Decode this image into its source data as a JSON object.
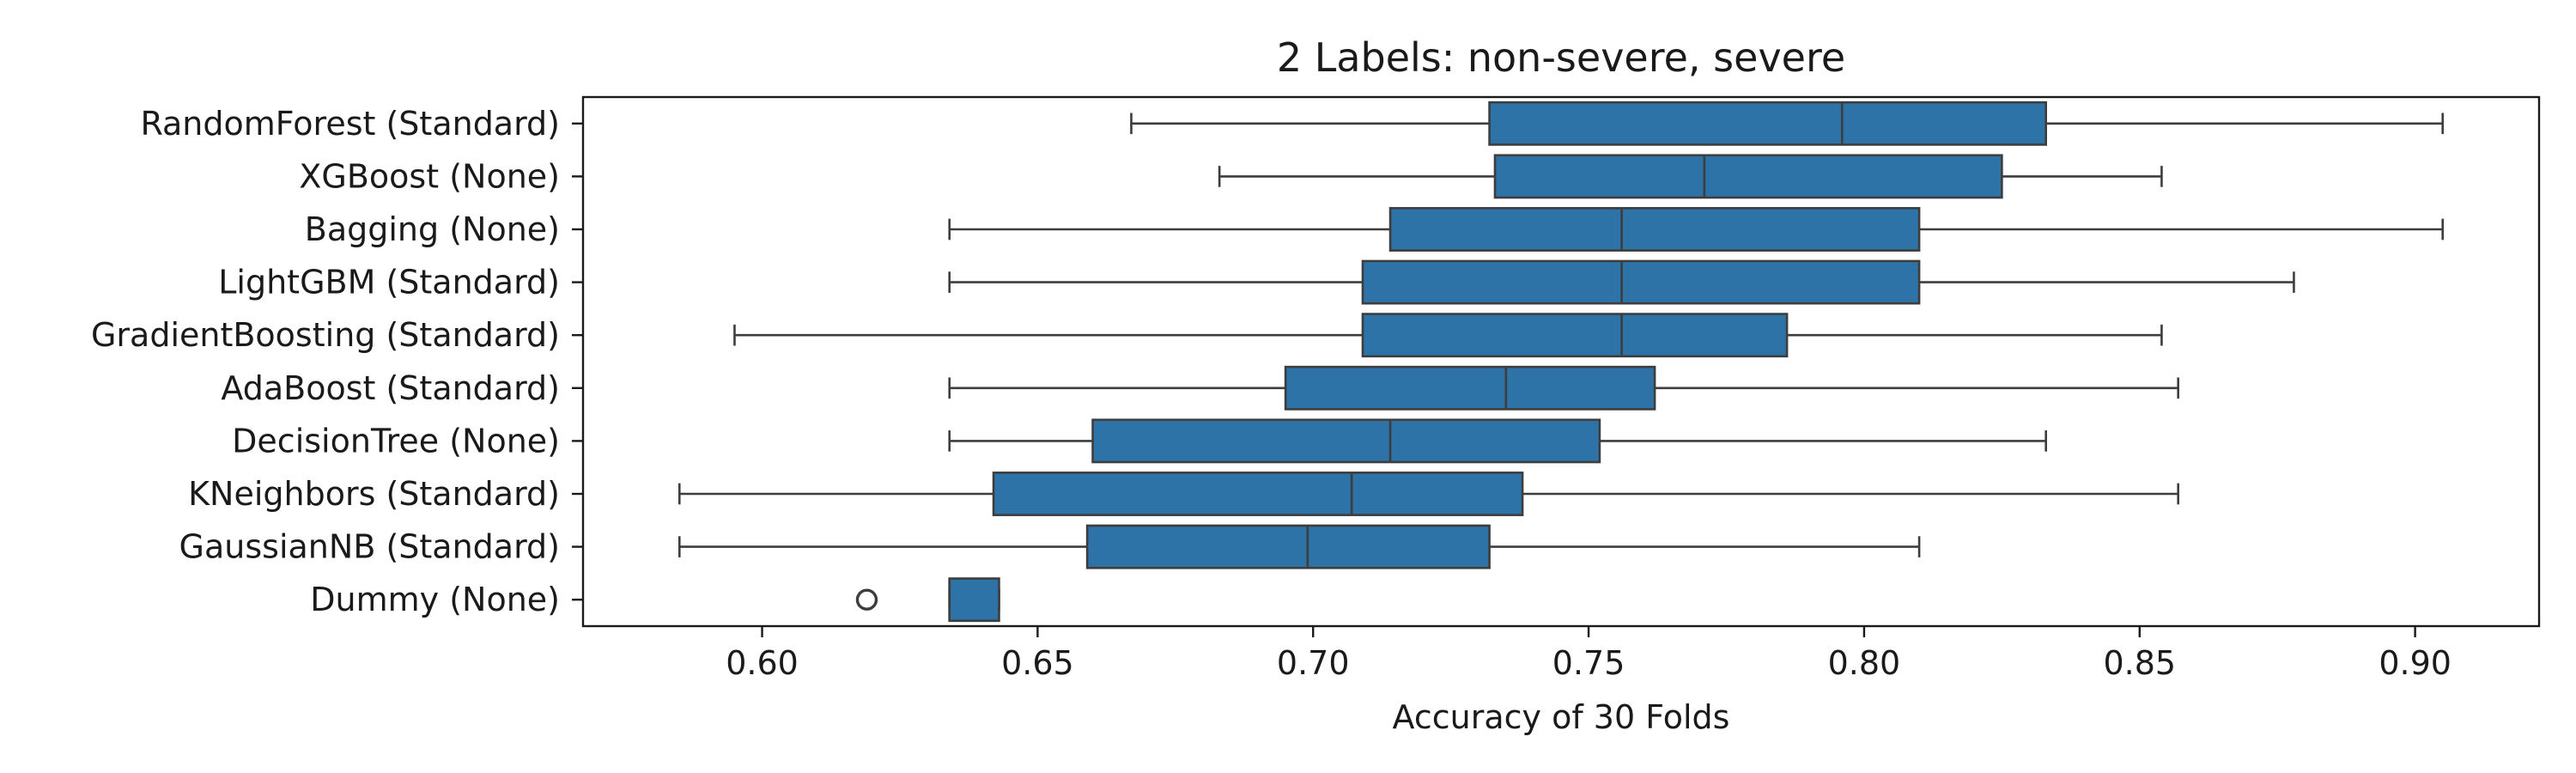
{
  "chart_data": {
    "type": "boxplot",
    "orientation": "horizontal",
    "title": "2 Labels: non-severe, severe",
    "xlabel": "Accuracy of 30 Folds",
    "ylabel": "",
    "xlim": [
      0.5675,
      0.9225
    ],
    "xticks": [
      0.6,
      0.65,
      0.7,
      0.75,
      0.8,
      0.85,
      0.9
    ],
    "xtick_labels": [
      "0.60",
      "0.65",
      "0.70",
      "0.75",
      "0.80",
      "0.85",
      "0.90"
    ],
    "grid": false,
    "legend": "none",
    "colors": {
      "box_fill": "#2e73a7",
      "line": "#3d3d3d"
    },
    "categories": [
      "RandomForest (Standard)",
      "XGBoost (None)",
      "Bagging (None)",
      "LightGBM (Standard)",
      "GradientBoosting (Standard)",
      "AdaBoost (Standard)",
      "DecisionTree (None)",
      "KNeighbors (Standard)",
      "GaussianNB (Standard)",
      "Dummy (None)"
    ],
    "boxes": [
      {
        "min": 0.667,
        "q1": 0.732,
        "median": 0.796,
        "q3": 0.833,
        "max": 0.905,
        "outliers": []
      },
      {
        "min": 0.683,
        "q1": 0.733,
        "median": 0.771,
        "q3": 0.825,
        "max": 0.854,
        "outliers": []
      },
      {
        "min": 0.634,
        "q1": 0.714,
        "median": 0.756,
        "q3": 0.81,
        "max": 0.905,
        "outliers": []
      },
      {
        "min": 0.634,
        "q1": 0.709,
        "median": 0.756,
        "q3": 0.81,
        "max": 0.878,
        "outliers": []
      },
      {
        "min": 0.595,
        "q1": 0.709,
        "median": 0.756,
        "q3": 0.786,
        "max": 0.854,
        "outliers": []
      },
      {
        "min": 0.634,
        "q1": 0.695,
        "median": 0.735,
        "q3": 0.762,
        "max": 0.857,
        "outliers": []
      },
      {
        "min": 0.634,
        "q1": 0.66,
        "median": 0.714,
        "q3": 0.752,
        "max": 0.833,
        "outliers": []
      },
      {
        "min": 0.585,
        "q1": 0.642,
        "median": 0.707,
        "q3": 0.738,
        "max": 0.857,
        "outliers": []
      },
      {
        "min": 0.585,
        "q1": 0.659,
        "median": 0.699,
        "q3": 0.732,
        "max": 0.81,
        "outliers": []
      },
      {
        "min": 0.634,
        "q1": 0.634,
        "median": 0.634,
        "q3": 0.643,
        "max": 0.643,
        "outliers": [
          0.619
        ]
      }
    ]
  }
}
